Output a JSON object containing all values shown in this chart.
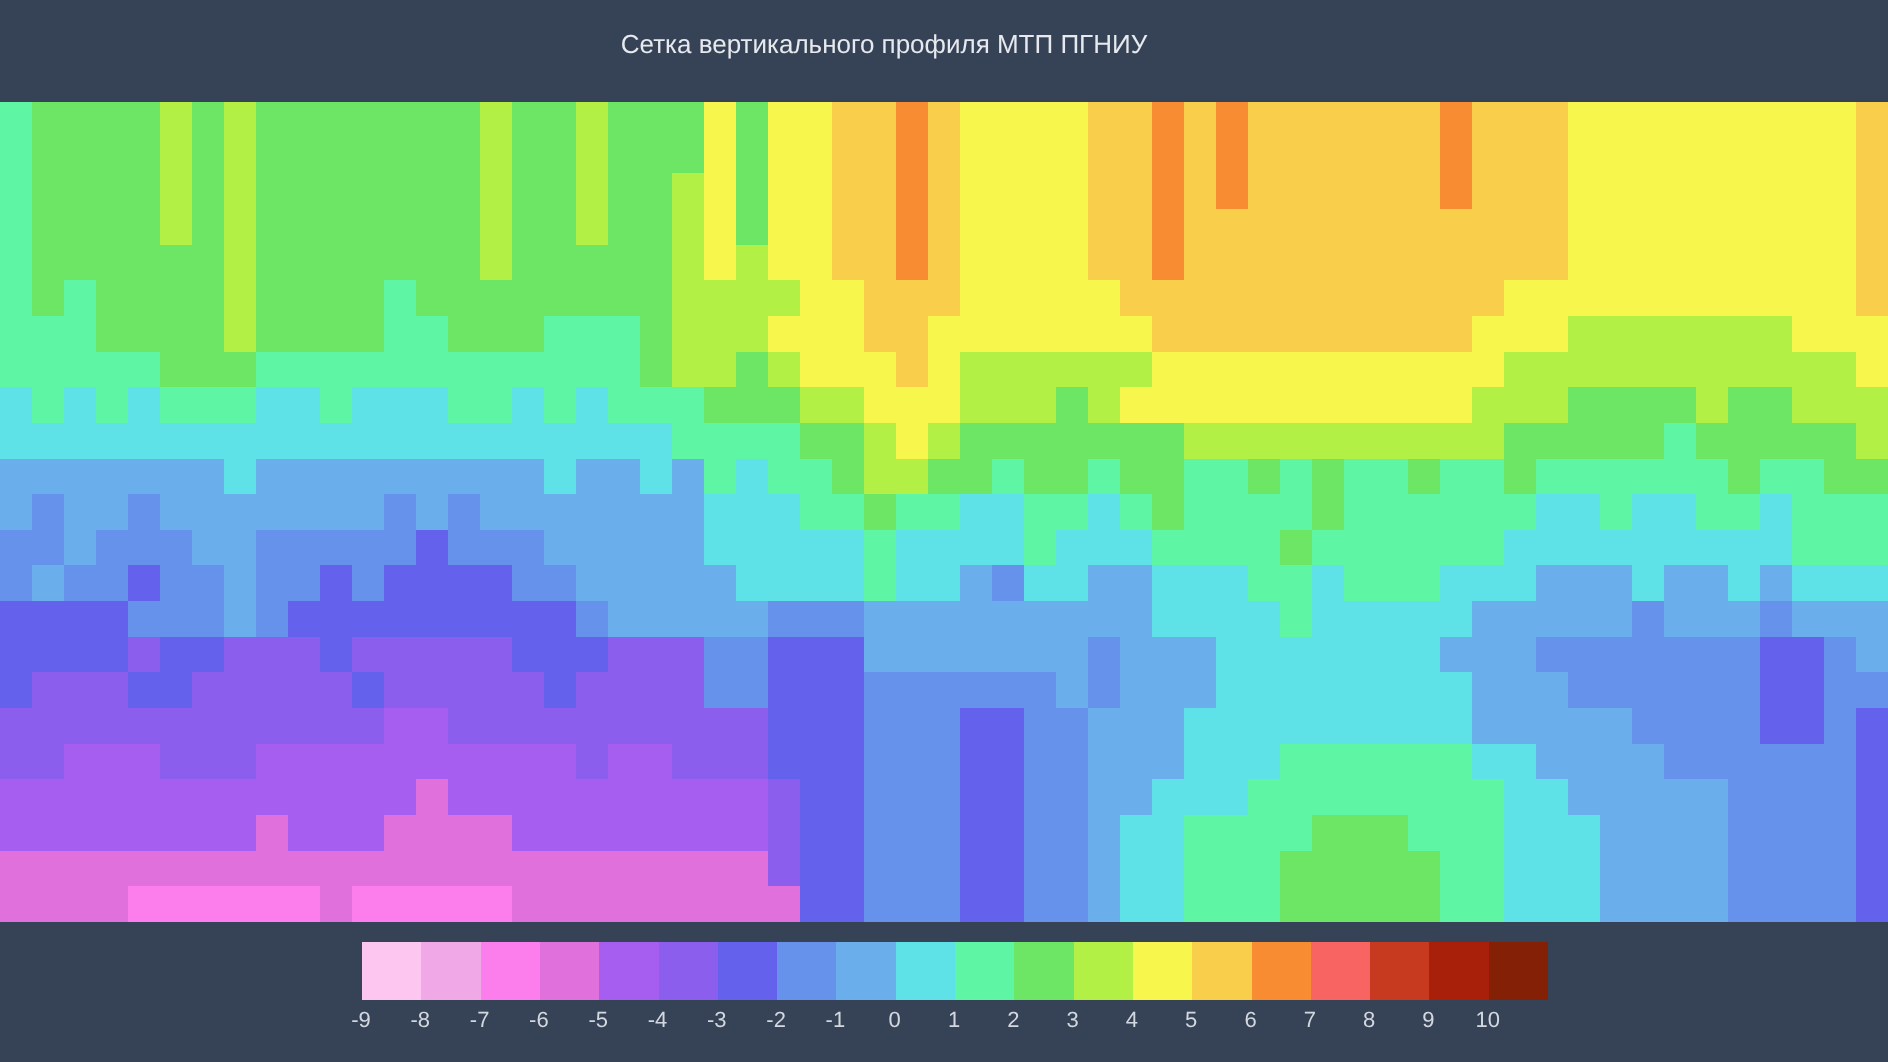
{
  "chart_data": {
    "type": "heatmap",
    "title": "Сетка вертикального профиля МТП ПГНИУ",
    "categories": [
      null,
      null,
      null,
      null,
      null,
      null,
      null,
      null,
      null,
      null,
      null,
      null,
      null,
      null,
      null,
      null,
      null,
      null,
      null,
      null,
      null,
      null,
      null,
      null,
      null,
      null,
      null,
      null,
      null,
      null,
      null,
      null,
      null,
      null,
      null,
      null,
      null,
      null,
      null,
      null,
      null,
      null,
      null,
      null,
      null,
      null,
      null,
      null,
      null,
      null,
      null,
      null,
      null,
      null,
      null,
      null,
      null,
      null,
      null
    ],
    "y_categories": [
      null,
      null,
      null,
      null,
      null,
      null,
      null,
      null,
      null,
      null,
      null,
      null,
      null,
      null,
      null,
      null,
      null,
      null,
      null,
      null,
      null,
      null,
      null
    ],
    "clim": [
      -9,
      11
    ],
    "cticks": [
      -9,
      -8,
      -7,
      -6,
      -5,
      -4,
      -3,
      -2,
      -1,
      0,
      1,
      2,
      3,
      4,
      5,
      6,
      7,
      8,
      9,
      10
    ],
    "colors": [
      "#fcc6f0",
      "#f0a8e6",
      "#fc7eec",
      "#e070dc",
      "#a65ef0",
      "#8c5eee",
      "#6462ec",
      "#6692ec",
      "#6aaeec",
      "#5ee2e8",
      "#5ef6a4",
      "#6ce664",
      "#b2f046",
      "#f6f64c",
      "#f8ce4a",
      "#f88c32",
      "#f86462",
      "#c83a20",
      "#a8200a",
      "#842006"
    ],
    "cells": [
      [
        1.5,
        2.5,
        2.5,
        2.5,
        2.5,
        3.5,
        2.5,
        3.5,
        2.5,
        2.5,
        2.5,
        2.5,
        2.5,
        2.5,
        2.5,
        3.5,
        2.5,
        2.5,
        3.5,
        2.5,
        2.5,
        2.5,
        4.5,
        2.5,
        4.5,
        4.5,
        5.5,
        5.5,
        6.5,
        5.5,
        4.5,
        4.5,
        4.5,
        4.5,
        5.5,
        5.5,
        6.5,
        5.5,
        6.5,
        5.5,
        5.5,
        5.5,
        5.5,
        5.5,
        5.5,
        6.5,
        5.5,
        5.5,
        5.5,
        4.5,
        4.5,
        4.5,
        4.5,
        4.5,
        4.5,
        4.5,
        4.5,
        4.5,
        5.5
      ],
      [
        1.5,
        2.5,
        2.5,
        2.5,
        2.5,
        3.5,
        2.5,
        3.5,
        2.5,
        2.5,
        2.5,
        2.5,
        2.5,
        2.5,
        2.5,
        3.5,
        2.5,
        2.5,
        3.5,
        2.5,
        2.5,
        2.5,
        4.5,
        2.5,
        4.5,
        4.5,
        5.5,
        5.5,
        6.5,
        5.5,
        4.5,
        4.5,
        4.5,
        4.5,
        5.5,
        5.5,
        6.5,
        5.5,
        6.5,
        5.5,
        5.5,
        5.5,
        5.5,
        5.5,
        5.5,
        6.5,
        5.5,
        5.5,
        5.5,
        4.5,
        4.5,
        4.5,
        4.5,
        4.5,
        4.5,
        4.5,
        4.5,
        4.5,
        5.5
      ],
      [
        1.5,
        2.5,
        2.5,
        2.5,
        2.5,
        3.5,
        2.5,
        3.5,
        2.5,
        2.5,
        2.5,
        2.5,
        2.5,
        2.5,
        2.5,
        3.5,
        2.5,
        2.5,
        3.5,
        2.5,
        2.5,
        3.5,
        4.5,
        2.5,
        4.5,
        4.5,
        5.5,
        5.5,
        6.5,
        5.5,
        4.5,
        4.5,
        4.5,
        4.5,
        5.5,
        5.5,
        6.5,
        5.5,
        6.5,
        5.5,
        5.5,
        5.5,
        5.5,
        5.5,
        5.5,
        6.5,
        5.5,
        5.5,
        5.5,
        4.5,
        4.5,
        4.5,
        4.5,
        4.5,
        4.5,
        4.5,
        4.5,
        4.5,
        5.5
      ],
      [
        1.5,
        2.5,
        2.5,
        2.5,
        2.5,
        3.5,
        2.5,
        3.5,
        2.5,
        2.5,
        2.5,
        2.5,
        2.5,
        2.5,
        2.5,
        3.5,
        2.5,
        2.5,
        3.5,
        2.5,
        2.5,
        3.5,
        4.5,
        2.5,
        4.5,
        4.5,
        5.5,
        5.5,
        6.5,
        5.5,
        4.5,
        4.5,
        4.5,
        4.5,
        5.5,
        5.5,
        6.5,
        5.5,
        5.5,
        5.5,
        5.5,
        5.5,
        5.5,
        5.5,
        5.5,
        5.5,
        5.5,
        5.5,
        5.5,
        4.5,
        4.5,
        4.5,
        4.5,
        4.5,
        4.5,
        4.5,
        4.5,
        4.5,
        5.5
      ],
      [
        1.5,
        2.5,
        2.5,
        2.5,
        2.5,
        2.5,
        2.5,
        3.5,
        2.5,
        2.5,
        2.5,
        2.5,
        2.5,
        2.5,
        2.5,
        3.5,
        2.5,
        2.5,
        2.5,
        2.5,
        2.5,
        3.5,
        4.5,
        3.5,
        4.5,
        4.5,
        5.5,
        5.5,
        6.5,
        5.5,
        4.5,
        4.5,
        4.5,
        4.5,
        5.5,
        5.5,
        6.5,
        5.5,
        5.5,
        5.5,
        5.5,
        5.5,
        5.5,
        5.5,
        5.5,
        5.5,
        5.5,
        5.5,
        5.5,
        4.5,
        4.5,
        4.5,
        4.5,
        4.5,
        4.5,
        4.5,
        4.5,
        4.5,
        5.5
      ],
      [
        1.5,
        2.5,
        1.5,
        2.5,
        2.5,
        2.5,
        2.5,
        3.5,
        2.5,
        2.5,
        2.5,
        2.5,
        1.5,
        2.5,
        2.5,
        2.5,
        2.5,
        2.5,
        2.5,
        2.5,
        2.5,
        3.5,
        3.5,
        3.5,
        3.5,
        4.5,
        4.5,
        5.5,
        5.5,
        5.5,
        4.5,
        4.5,
        4.5,
        4.5,
        4.5,
        5.5,
        5.5,
        5.5,
        5.5,
        5.5,
        5.5,
        5.5,
        5.5,
        5.5,
        5.5,
        5.5,
        5.5,
        4.5,
        4.5,
        4.5,
        4.5,
        4.5,
        4.5,
        4.5,
        4.5,
        4.5,
        4.5,
        4.5,
        5.5
      ],
      [
        1.5,
        1.5,
        1.5,
        2.5,
        2.5,
        2.5,
        2.5,
        3.5,
        2.5,
        2.5,
        2.5,
        2.5,
        1.5,
        1.5,
        2.5,
        2.5,
        2.5,
        1.5,
        1.5,
        1.5,
        2.5,
        3.5,
        3.5,
        3.5,
        4.5,
        4.5,
        4.5,
        5.5,
        5.5,
        4.5,
        4.5,
        4.5,
        4.5,
        4.5,
        4.5,
        4.5,
        5.5,
        5.5,
        5.5,
        5.5,
        5.5,
        5.5,
        5.5,
        5.5,
        5.5,
        5.5,
        4.5,
        4.5,
        4.5,
        3.5,
        3.5,
        3.5,
        3.5,
        3.5,
        3.5,
        3.5,
        4.5,
        4.5,
        4.5
      ],
      [
        1.5,
        1.5,
        1.5,
        1.5,
        1.5,
        2.5,
        2.5,
        2.5,
        1.5,
        1.5,
        1.5,
        1.5,
        1.5,
        1.5,
        1.5,
        1.5,
        1.5,
        1.5,
        1.5,
        1.5,
        2.5,
        3.5,
        3.5,
        2.5,
        3.5,
        4.5,
        4.5,
        4.5,
        5.5,
        4.5,
        3.5,
        3.5,
        3.5,
        3.5,
        3.5,
        3.5,
        4.5,
        4.5,
        4.5,
        4.5,
        4.5,
        4.5,
        4.5,
        4.5,
        4.5,
        4.5,
        4.5,
        3.5,
        3.5,
        3.5,
        3.5,
        3.5,
        3.5,
        3.5,
        3.5,
        3.5,
        3.5,
        3.5,
        4.5
      ],
      [
        0.5,
        1.5,
        0.5,
        1.5,
        0.5,
        1.5,
        1.5,
        1.5,
        0.5,
        0.5,
        1.5,
        0.5,
        0.5,
        0.5,
        1.5,
        1.5,
        0.5,
        1.5,
        0.5,
        1.5,
        1.5,
        1.5,
        2.5,
        2.5,
        2.5,
        3.5,
        3.5,
        4.5,
        4.5,
        4.5,
        3.5,
        3.5,
        3.5,
        2.5,
        3.5,
        4.5,
        4.5,
        4.5,
        4.5,
        4.5,
        4.5,
        4.5,
        4.5,
        4.5,
        4.5,
        4.5,
        3.5,
        3.5,
        3.5,
        2.5,
        2.5,
        2.5,
        2.5,
        3.5,
        2.5,
        2.5,
        3.5,
        3.5,
        3.5
      ],
      [
        0.5,
        0.5,
        0.5,
        0.5,
        0.5,
        0.5,
        0.5,
        0.5,
        0.5,
        0.5,
        0.5,
        0.5,
        0.5,
        0.5,
        0.5,
        0.5,
        0.5,
        0.5,
        0.5,
        0.5,
        0.5,
        1.5,
        1.5,
        1.5,
        1.5,
        2.5,
        2.5,
        3.5,
        4.5,
        3.5,
        2.5,
        2.5,
        2.5,
        2.5,
        2.5,
        2.5,
        2.5,
        3.5,
        3.5,
        3.5,
        3.5,
        3.5,
        3.5,
        3.5,
        3.5,
        3.5,
        3.5,
        2.5,
        2.5,
        2.5,
        2.5,
        2.5,
        1.5,
        2.5,
        2.5,
        2.5,
        2.5,
        2.5,
        3.5
      ],
      [
        -0.5,
        -0.5,
        -0.5,
        -0.5,
        -0.5,
        -0.5,
        -0.5,
        0.5,
        -0.5,
        -0.5,
        -0.5,
        -0.5,
        -0.5,
        -0.5,
        -0.5,
        -0.5,
        -0.5,
        0.5,
        -0.5,
        -0.5,
        0.5,
        -0.5,
        1.5,
        0.5,
        1.5,
        1.5,
        2.5,
        3.5,
        3.5,
        2.5,
        2.5,
        1.5,
        2.5,
        2.5,
        1.5,
        2.5,
        2.5,
        1.5,
        1.5,
        2.5,
        1.5,
        2.5,
        1.5,
        1.5,
        2.5,
        1.5,
        1.5,
        2.5,
        1.5,
        1.5,
        1.5,
        1.5,
        1.5,
        1.5,
        2.5,
        1.5,
        1.5,
        2.5,
        2.5
      ],
      [
        -0.5,
        -1.5,
        -0.5,
        -0.5,
        -1.5,
        -0.5,
        -0.5,
        -0.5,
        -0.5,
        -0.5,
        -0.5,
        -0.5,
        -1.5,
        -0.5,
        -1.5,
        -0.5,
        -0.5,
        -0.5,
        -0.5,
        -0.5,
        -0.5,
        -0.5,
        0.5,
        0.5,
        0.5,
        1.5,
        1.5,
        2.5,
        1.5,
        1.5,
        0.5,
        0.5,
        1.5,
        1.5,
        0.5,
        1.5,
        2.5,
        1.5,
        1.5,
        1.5,
        1.5,
        2.5,
        1.5,
        1.5,
        1.5,
        1.5,
        1.5,
        1.5,
        0.5,
        0.5,
        1.5,
        0.5,
        0.5,
        1.5,
        1.5,
        0.5,
        1.5,
        1.5,
        1.5
      ],
      [
        -1.5,
        -1.5,
        -0.5,
        -1.5,
        -1.5,
        -1.5,
        -0.5,
        -0.5,
        -1.5,
        -1.5,
        -1.5,
        -1.5,
        -1.5,
        -2.5,
        -1.5,
        -1.5,
        -1.5,
        -0.5,
        -0.5,
        -0.5,
        -0.5,
        -0.5,
        0.5,
        0.5,
        0.5,
        0.5,
        0.5,
        1.5,
        0.5,
        0.5,
        0.5,
        0.5,
        1.5,
        0.5,
        0.5,
        0.5,
        1.5,
        1.5,
        1.5,
        1.5,
        2.5,
        1.5,
        1.5,
        1.5,
        1.5,
        1.5,
        1.5,
        0.5,
        0.5,
        0.5,
        0.5,
        0.5,
        0.5,
        0.5,
        0.5,
        0.5,
        1.5,
        1.5,
        1.5
      ],
      [
        -1.5,
        -0.5,
        -1.5,
        -1.5,
        -2.5,
        -1.5,
        -1.5,
        -0.5,
        -1.5,
        -1.5,
        -2.5,
        -1.5,
        -2.5,
        -2.5,
        -2.5,
        -2.5,
        -1.5,
        -1.5,
        -0.5,
        -0.5,
        -0.5,
        -0.5,
        -0.5,
        0.5,
        0.5,
        0.5,
        0.5,
        1.5,
        0.5,
        0.5,
        -0.5,
        -1.5,
        0.5,
        0.5,
        -0.5,
        -0.5,
        0.5,
        0.5,
        0.5,
        1.5,
        1.5,
        0.5,
        1.5,
        1.5,
        1.5,
        0.5,
        0.5,
        0.5,
        -0.5,
        -0.5,
        -0.5,
        0.5,
        -0.5,
        -0.5,
        0.5,
        -0.5,
        0.5,
        0.5,
        0.5
      ],
      [
        -2.5,
        -2.5,
        -2.5,
        -2.5,
        -1.5,
        -1.5,
        -1.5,
        -0.5,
        -1.5,
        -2.5,
        -2.5,
        -2.5,
        -2.5,
        -2.5,
        -2.5,
        -2.5,
        -2.5,
        -2.5,
        -1.5,
        -0.5,
        -0.5,
        -0.5,
        -0.5,
        -0.5,
        -1.5,
        -1.5,
        -1.5,
        -0.5,
        -0.5,
        -0.5,
        -0.5,
        -0.5,
        -0.5,
        -0.5,
        -0.5,
        -0.5,
        0.5,
        0.5,
        0.5,
        0.5,
        1.5,
        0.5,
        0.5,
        0.5,
        0.5,
        0.5,
        -0.5,
        -0.5,
        -0.5,
        -0.5,
        -0.5,
        -1.5,
        -0.5,
        -0.5,
        -0.5,
        -1.5,
        -0.5,
        -0.5,
        -0.5
      ],
      [
        -2.5,
        -2.5,
        -2.5,
        -2.5,
        -3.5,
        -2.5,
        -2.5,
        -3.5,
        -3.5,
        -3.5,
        -2.5,
        -3.5,
        -3.5,
        -3.5,
        -3.5,
        -3.5,
        -2.5,
        -2.5,
        -2.5,
        -3.5,
        -3.5,
        -3.5,
        -1.5,
        -1.5,
        -2.5,
        -2.5,
        -2.5,
        -0.5,
        -0.5,
        -0.5,
        -0.5,
        -0.5,
        -0.5,
        -0.5,
        -1.5,
        -0.5,
        -0.5,
        -0.5,
        0.5,
        0.5,
        0.5,
        0.5,
        0.5,
        0.5,
        0.5,
        -0.5,
        -0.5,
        -0.5,
        -1.5,
        -1.5,
        -1.5,
        -1.5,
        -1.5,
        -1.5,
        -1.5,
        -2.5,
        -2.5,
        -1.5,
        -0.5
      ],
      [
        -2.5,
        -3.5,
        -3.5,
        -3.5,
        -2.5,
        -2.5,
        -3.5,
        -3.5,
        -3.5,
        -3.5,
        -3.5,
        -2.5,
        -3.5,
        -3.5,
        -3.5,
        -3.5,
        -3.5,
        -2.5,
        -3.5,
        -3.5,
        -3.5,
        -3.5,
        -1.5,
        -1.5,
        -2.5,
        -2.5,
        -2.5,
        -1.5,
        -1.5,
        -1.5,
        -1.5,
        -1.5,
        -1.5,
        -0.5,
        -1.5,
        -0.5,
        -0.5,
        -0.5,
        0.5,
        0.5,
        0.5,
        0.5,
        0.5,
        0.5,
        0.5,
        0.5,
        -0.5,
        -0.5,
        -0.5,
        -1.5,
        -1.5,
        -1.5,
        -1.5,
        -1.5,
        -1.5,
        -2.5,
        -2.5,
        -1.5,
        -1.5
      ],
      [
        -3.5,
        -3.5,
        -3.5,
        -3.5,
        -3.5,
        -3.5,
        -3.5,
        -3.5,
        -3.5,
        -3.5,
        -3.5,
        -3.5,
        -4.5,
        -4.5,
        -3.5,
        -3.5,
        -3.5,
        -3.5,
        -3.5,
        -3.5,
        -3.5,
        -3.5,
        -3.5,
        -3.5,
        -2.5,
        -2.5,
        -2.5,
        -1.5,
        -1.5,
        -1.5,
        -2.5,
        -2.5,
        -1.5,
        -1.5,
        -0.5,
        -0.5,
        -0.5,
        0.5,
        0.5,
        0.5,
        0.5,
        0.5,
        0.5,
        0.5,
        0.5,
        0.5,
        -0.5,
        -0.5,
        -0.5,
        -0.5,
        -0.5,
        -1.5,
        -1.5,
        -1.5,
        -1.5,
        -2.5,
        -2.5,
        -1.5,
        -2.5
      ],
      [
        -3.5,
        -3.5,
        -4.5,
        -4.5,
        -4.5,
        -3.5,
        -3.5,
        -3.5,
        -4.5,
        -4.5,
        -4.5,
        -4.5,
        -4.5,
        -4.5,
        -4.5,
        -4.5,
        -4.5,
        -4.5,
        -3.5,
        -4.5,
        -4.5,
        -3.5,
        -3.5,
        -3.5,
        -2.5,
        -2.5,
        -2.5,
        -1.5,
        -1.5,
        -1.5,
        -2.5,
        -2.5,
        -1.5,
        -1.5,
        -0.5,
        -0.5,
        -0.5,
        0.5,
        0.5,
        0.5,
        1.5,
        1.5,
        1.5,
        1.5,
        1.5,
        1.5,
        0.5,
        0.5,
        -0.5,
        -0.5,
        -0.5,
        -0.5,
        -1.5,
        -1.5,
        -1.5,
        -1.5,
        -1.5,
        -1.5,
        -2.5
      ],
      [
        -4.5,
        -4.5,
        -4.5,
        -4.5,
        -4.5,
        -4.5,
        -4.5,
        -4.5,
        -4.5,
        -4.5,
        -4.5,
        -4.5,
        -4.5,
        -5.5,
        -4.5,
        -4.5,
        -4.5,
        -4.5,
        -4.5,
        -4.5,
        -4.5,
        -4.5,
        -4.5,
        -4.5,
        -3.5,
        -2.5,
        -2.5,
        -1.5,
        -1.5,
        -1.5,
        -2.5,
        -2.5,
        -1.5,
        -1.5,
        -0.5,
        -0.5,
        0.5,
        0.5,
        0.5,
        1.5,
        1.5,
        1.5,
        1.5,
        1.5,
        1.5,
        1.5,
        1.5,
        0.5,
        0.5,
        -0.5,
        -0.5,
        -0.5,
        -0.5,
        -0.5,
        -1.5,
        -1.5,
        -1.5,
        -1.5,
        -2.5
      ],
      [
        -4.5,
        -4.5,
        -4.5,
        -4.5,
        -4.5,
        -4.5,
        -4.5,
        -4.5,
        -5.5,
        -4.5,
        -4.5,
        -4.5,
        -5.5,
        -5.5,
        -5.5,
        -5.5,
        -4.5,
        -4.5,
        -4.5,
        -4.5,
        -4.5,
        -4.5,
        -4.5,
        -4.5,
        -3.5,
        -2.5,
        -2.5,
        -1.5,
        -1.5,
        -1.5,
        -2.5,
        -2.5,
        -1.5,
        -1.5,
        -0.5,
        0.5,
        0.5,
        1.5,
        1.5,
        1.5,
        1.5,
        2.5,
        2.5,
        2.5,
        1.5,
        1.5,
        1.5,
        0.5,
        0.5,
        0.5,
        -0.5,
        -0.5,
        -0.5,
        -0.5,
        -1.5,
        -1.5,
        -1.5,
        -1.5,
        -2.5
      ],
      [
        -5.5,
        -5.5,
        -5.5,
        -5.5,
        -5.5,
        -5.5,
        -5.5,
        -5.5,
        -5.5,
        -5.5,
        -5.5,
        -5.5,
        -5.5,
        -5.5,
        -5.5,
        -5.5,
        -5.5,
        -5.5,
        -5.5,
        -5.5,
        -5.5,
        -5.5,
        -5.5,
        -5.5,
        -3.5,
        -2.5,
        -2.5,
        -1.5,
        -1.5,
        -1.5,
        -2.5,
        -2.5,
        -1.5,
        -1.5,
        -0.5,
        0.5,
        0.5,
        1.5,
        1.5,
        1.5,
        2.5,
        2.5,
        2.5,
        2.5,
        2.5,
        1.5,
        1.5,
        0.5,
        0.5,
        0.5,
        -0.5,
        -0.5,
        -0.5,
        -0.5,
        -1.5,
        -1.5,
        -1.5,
        -1.5,
        -2.5
      ],
      [
        -5.5,
        -5.5,
        -5.5,
        -5.5,
        -6.5,
        -6.5,
        -6.5,
        -6.5,
        -6.5,
        -6.5,
        -5.5,
        -6.5,
        -6.5,
        -6.5,
        -6.5,
        -6.5,
        -5.5,
        -5.5,
        -5.5,
        -5.5,
        -5.5,
        -5.5,
        -5.5,
        -5.5,
        -5.5,
        -2.5,
        -2.5,
        -1.5,
        -1.5,
        -1.5,
        -2.5,
        -2.5,
        -1.5,
        -1.5,
        -0.5,
        0.5,
        0.5,
        1.5,
        1.5,
        1.5,
        2.5,
        2.5,
        2.5,
        2.5,
        2.5,
        1.5,
        1.5,
        0.5,
        0.5,
        0.5,
        -0.5,
        -0.5,
        -0.5,
        -0.5,
        -1.5,
        -1.5,
        -1.5,
        -1.5,
        -2.5
      ]
    ]
  }
}
